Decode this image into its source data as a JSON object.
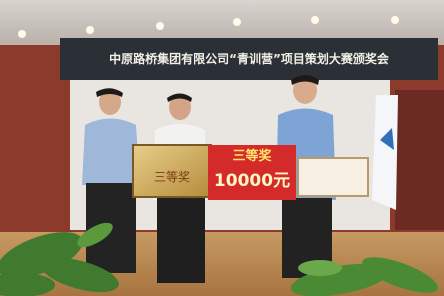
{
  "banner": {
    "text": "中原路桥集团有限公司“青训营”项目策划大赛颁奖会"
  },
  "award_board": {
    "title": "三等奖",
    "amount": "10000元"
  },
  "plaque": {
    "title": "三等奖"
  }
}
